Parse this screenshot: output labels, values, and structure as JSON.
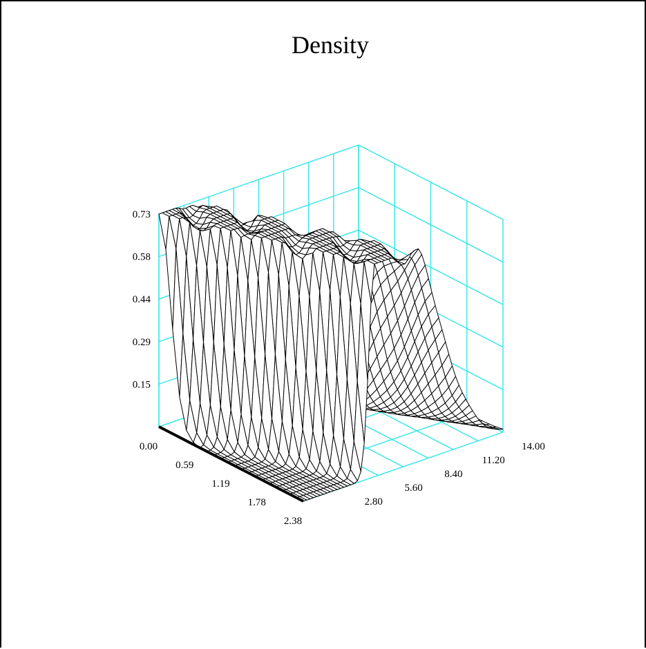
{
  "chart_data": {
    "type": "surface",
    "title": "Density",
    "axes": {
      "x": {
        "range": [
          0,
          2.38
        ],
        "ticks": [
          "0.00",
          "0.59",
          "1.19",
          "1.78",
          "2.38"
        ]
      },
      "y": {
        "range": [
          0,
          14
        ],
        "ticks": [
          "2.80",
          "5.60",
          "8.40",
          "11.20",
          "14.00"
        ]
      },
      "z": {
        "range": [
          0,
          0.73
        ],
        "ticks": [
          "0.15",
          "0.29",
          "0.44",
          "0.58",
          "0.73"
        ]
      }
    },
    "grid": true,
    "surface": {
      "x_samples": 22,
      "y_samples": 60,
      "peak_density": 0.73,
      "peak_y_at_x0": 1.2,
      "peak_y_at_xmax": 6.2
    },
    "colors": {
      "grid": "#30e6e6",
      "mesh": "#000000",
      "background": "#ffffff"
    }
  }
}
